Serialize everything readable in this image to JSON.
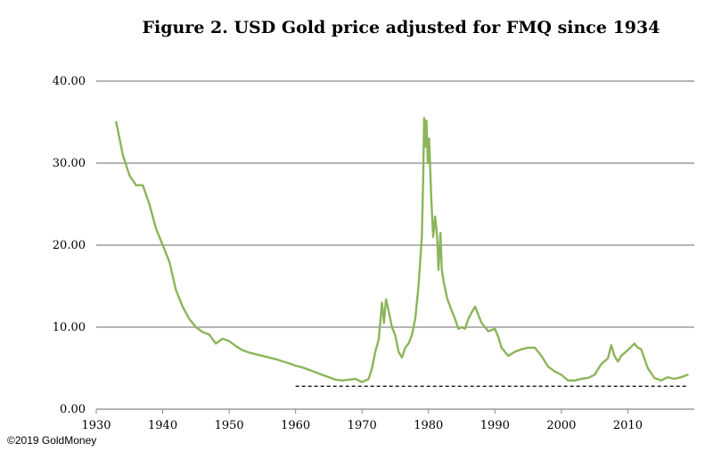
{
  "chart_data": {
    "type": "line",
    "title": "Figure 2. USD Gold price adjusted for FMQ since 1934",
    "xlabel": "",
    "ylabel": "",
    "xlim": [
      1930,
      2020
    ],
    "ylim": [
      0,
      40
    ],
    "x_ticks": [
      "1930",
      "1940",
      "1950",
      "1960",
      "1970",
      "1980",
      "1990",
      "2000",
      "2010"
    ],
    "y_ticks": [
      "0.00",
      "10.00",
      "20.00",
      "30.00",
      "40.00"
    ],
    "grid": "horizontal",
    "line_color": "#8cb55a",
    "reference_line": {
      "y": 2.8,
      "x_start": 1960,
      "x_end": 2019,
      "style": "dashed",
      "color": "#000000"
    },
    "series": [
      {
        "values": [
          [
            1933.0,
            35.0
          ],
          [
            1934.0,
            31.0
          ],
          [
            1935.0,
            28.5
          ],
          [
            1936.0,
            27.3
          ],
          [
            1937.0,
            27.3
          ],
          [
            1938.0,
            25.0
          ],
          [
            1939.0,
            22.0
          ],
          [
            1940.0,
            20.0
          ],
          [
            1941.0,
            18.0
          ],
          [
            1942.0,
            14.5
          ],
          [
            1943.0,
            12.5
          ],
          [
            1944.0,
            11.0
          ],
          [
            1945.0,
            10.0
          ],
          [
            1946.0,
            9.4
          ],
          [
            1947.0,
            9.1
          ],
          [
            1948.0,
            8.0
          ],
          [
            1949.0,
            8.6
          ],
          [
            1950.0,
            8.3
          ],
          [
            1951.0,
            7.7
          ],
          [
            1952.0,
            7.2
          ],
          [
            1953.0,
            6.9
          ],
          [
            1955.0,
            6.5
          ],
          [
            1957.0,
            6.1
          ],
          [
            1959.0,
            5.6
          ],
          [
            1960.0,
            5.3
          ],
          [
            1961.0,
            5.1
          ],
          [
            1962.0,
            4.8
          ],
          [
            1963.0,
            4.5
          ],
          [
            1964.0,
            4.2
          ],
          [
            1965.0,
            3.9
          ],
          [
            1966.0,
            3.6
          ],
          [
            1967.0,
            3.5
          ],
          [
            1968.0,
            3.6
          ],
          [
            1969.0,
            3.7
          ],
          [
            1970.0,
            3.3
          ],
          [
            1971.0,
            3.7
          ],
          [
            1971.5,
            5.0
          ],
          [
            1972.0,
            7.0
          ],
          [
            1972.5,
            8.5
          ],
          [
            1973.0,
            13.0
          ],
          [
            1973.3,
            10.5
          ],
          [
            1973.6,
            13.4
          ],
          [
            1974.0,
            12.0
          ],
          [
            1974.5,
            10.0
          ],
          [
            1975.0,
            9.0
          ],
          [
            1975.5,
            7.0
          ],
          [
            1976.0,
            6.3
          ],
          [
            1976.5,
            7.5
          ],
          [
            1977.0,
            8.0
          ],
          [
            1977.5,
            9.0
          ],
          [
            1978.0,
            11.0
          ],
          [
            1978.5,
            15.0
          ],
          [
            1979.0,
            21.0
          ],
          [
            1979.2,
            28.0
          ],
          [
            1979.35,
            35.5
          ],
          [
            1979.5,
            32.0
          ],
          [
            1979.7,
            35.2
          ],
          [
            1979.9,
            30.0
          ],
          [
            1980.1,
            33.0
          ],
          [
            1980.4,
            26.0
          ],
          [
            1980.7,
            21.0
          ],
          [
            1981.0,
            23.5
          ],
          [
            1981.3,
            21.0
          ],
          [
            1981.5,
            17.0
          ],
          [
            1981.8,
            21.5
          ],
          [
            1982.0,
            17.0
          ],
          [
            1982.3,
            15.5
          ],
          [
            1982.8,
            13.5
          ],
          [
            1983.5,
            12.0
          ],
          [
            1984.0,
            11.0
          ],
          [
            1984.5,
            9.8
          ],
          [
            1985.0,
            10.0
          ],
          [
            1985.5,
            9.8
          ],
          [
            1986.0,
            11.0
          ],
          [
            1986.5,
            11.8
          ],
          [
            1987.0,
            12.5
          ],
          [
            1987.5,
            11.5
          ],
          [
            1988.0,
            10.5
          ],
          [
            1989.0,
            9.5
          ],
          [
            1990.0,
            9.8
          ],
          [
            1990.5,
            8.8
          ],
          [
            1991.0,
            7.5
          ],
          [
            1992.0,
            6.5
          ],
          [
            1993.0,
            7.0
          ],
          [
            1994.0,
            7.3
          ],
          [
            1995.0,
            7.5
          ],
          [
            1996.0,
            7.5
          ],
          [
            1997.0,
            6.5
          ],
          [
            1998.0,
            5.2
          ],
          [
            1999.0,
            4.6
          ],
          [
            2000.0,
            4.2
          ],
          [
            2001.0,
            3.5
          ],
          [
            2002.0,
            3.5
          ],
          [
            2003.0,
            3.7
          ],
          [
            2004.0,
            3.8
          ],
          [
            2005.0,
            4.2
          ],
          [
            2006.0,
            5.5
          ],
          [
            2007.0,
            6.2
          ],
          [
            2007.5,
            7.8
          ],
          [
            2008.0,
            6.5
          ],
          [
            2008.5,
            5.8
          ],
          [
            2009.0,
            6.5
          ],
          [
            2010.0,
            7.2
          ],
          [
            2011.0,
            8.0
          ],
          [
            2011.5,
            7.5
          ],
          [
            2012.0,
            7.3
          ],
          [
            2013.0,
            5.0
          ],
          [
            2014.0,
            3.8
          ],
          [
            2015.0,
            3.5
          ],
          [
            2016.0,
            3.9
          ],
          [
            2017.0,
            3.7
          ],
          [
            2018.0,
            3.9
          ],
          [
            2019.0,
            4.2
          ]
        ]
      }
    ]
  },
  "footer": {
    "copyright": "©2019 GoldMoney"
  }
}
